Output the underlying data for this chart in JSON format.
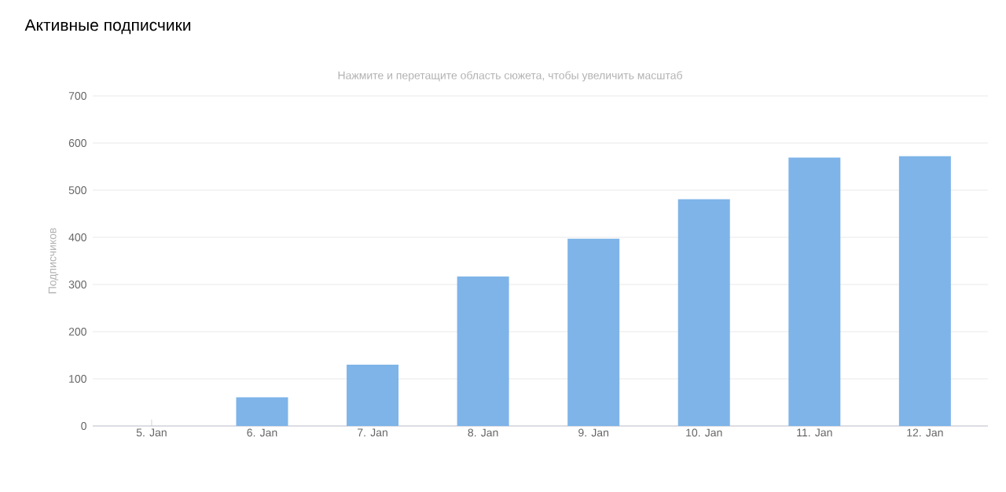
{
  "chart_data": {
    "type": "bar",
    "title": "Активные подписчики",
    "subtitle": "Нажмите и перетащите область сюжета, чтобы увеличить масштаб",
    "ylabel": "Подписчиков",
    "categories": [
      "5. Jan",
      "6. Jan",
      "7. Jan",
      "8. Jan",
      "9. Jan",
      "10. Jan",
      "11. Jan",
      "12. Jan"
    ],
    "values": [
      0,
      61,
      130,
      317,
      397,
      481,
      569,
      572
    ],
    "color": "#7eb4e8",
    "ylim": [
      0,
      700
    ],
    "yticks": [
      0,
      100,
      200,
      300,
      400,
      500,
      600,
      700
    ],
    "grid": "y"
  }
}
